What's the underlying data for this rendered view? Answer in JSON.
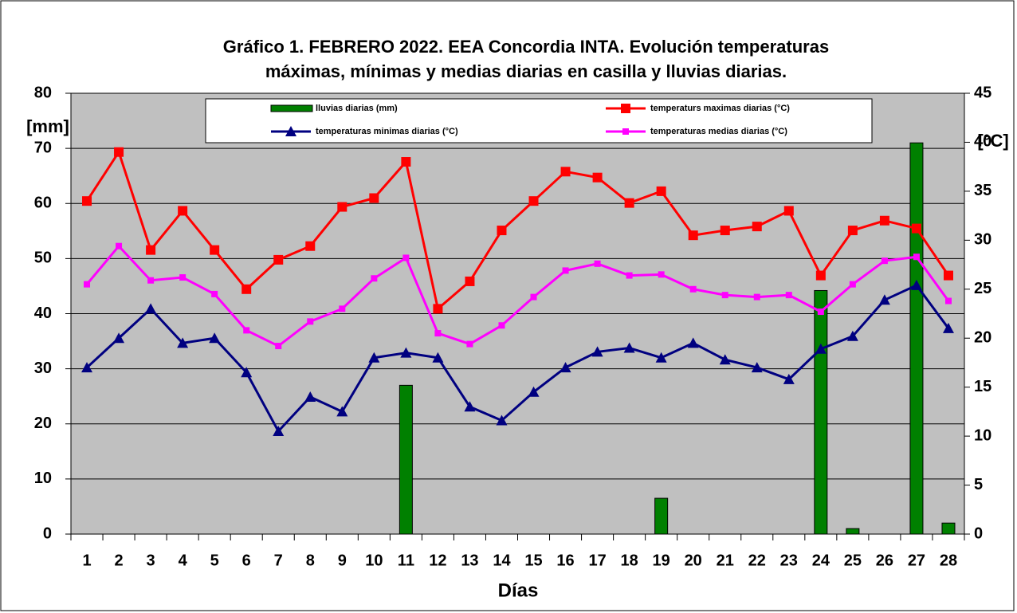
{
  "chart_data": {
    "type": "bar-line",
    "title": [
      "Gráfico 1. FEBRERO  2022. EEA Concordia INTA. Evolución temperaturas",
      "máximas, mínimas y medias diarias en casilla y lluvias diarias."
    ],
    "ylabel": "[mm]",
    "y2label": "[°C]",
    "xlabel": "Días",
    "categories": [
      "1",
      "2",
      "3",
      "4",
      "5",
      "6",
      "7",
      "8",
      "9",
      "10",
      "11",
      "12",
      "13",
      "14",
      "15",
      "16",
      "17",
      "18",
      "19",
      "20",
      "21",
      "22",
      "23",
      "24",
      "25",
      "26",
      "27",
      "28"
    ],
    "ylim": [
      0,
      80
    ],
    "yticks": [
      0,
      10,
      20,
      30,
      40,
      50,
      60,
      70,
      80
    ],
    "y2lim": [
      0,
      45
    ],
    "y2ticks": [
      0,
      5,
      10,
      15,
      20,
      25,
      30,
      35,
      40,
      45
    ],
    "grid": true,
    "series": [
      {
        "name": "lluvias diarias (mm)",
        "type": "bar",
        "color": "#008000",
        "values": [
          0,
          0,
          0,
          0,
          0,
          0,
          0,
          0,
          0,
          0,
          27,
          0,
          0,
          0,
          0,
          0,
          0,
          0,
          6.5,
          0,
          0,
          0,
          0,
          44.2,
          1,
          0,
          71,
          2
        ]
      },
      {
        "name": "temperaturs maximas diarias (°C)",
        "type": "line",
        "axis": "y2",
        "color": "#ff0000",
        "marker": "square",
        "values": [
          34.0,
          39.0,
          29.0,
          33.0,
          29.0,
          25.0,
          28.0,
          29.4,
          33.4,
          34.3,
          38.0,
          23.0,
          25.8,
          31.0,
          34.0,
          37.0,
          36.4,
          33.8,
          35.0,
          30.5,
          31.0,
          31.4,
          33.0,
          26.4,
          31.0,
          32.0,
          31.2,
          26.4
        ]
      },
      {
        "name": "temperaturas minimas diarias (°C)",
        "type": "line",
        "axis": "y2",
        "color": "#000080",
        "marker": "triangle",
        "values": [
          17.0,
          20.0,
          23.0,
          19.5,
          20.0,
          16.5,
          10.5,
          14.0,
          12.5,
          18.0,
          18.5,
          18.0,
          13.0,
          11.6,
          14.5,
          17.0,
          18.6,
          19.0,
          18.0,
          19.5,
          17.8,
          17.0,
          15.8,
          18.9,
          20.2,
          23.9,
          25.4,
          21.0
        ]
      },
      {
        "name": "temperaturas medias diarias (°C)",
        "type": "line",
        "axis": "y2",
        "color": "#ff00ff",
        "marker": "small-square",
        "values": [
          25.5,
          29.4,
          25.9,
          26.2,
          24.5,
          20.8,
          19.2,
          21.7,
          23.0,
          26.1,
          28.2,
          20.5,
          19.4,
          21.3,
          24.2,
          26.9,
          27.6,
          26.4,
          26.5,
          25.0,
          24.4,
          24.2,
          24.4,
          22.7,
          25.5,
          27.9,
          28.3,
          23.8
        ]
      }
    ]
  }
}
